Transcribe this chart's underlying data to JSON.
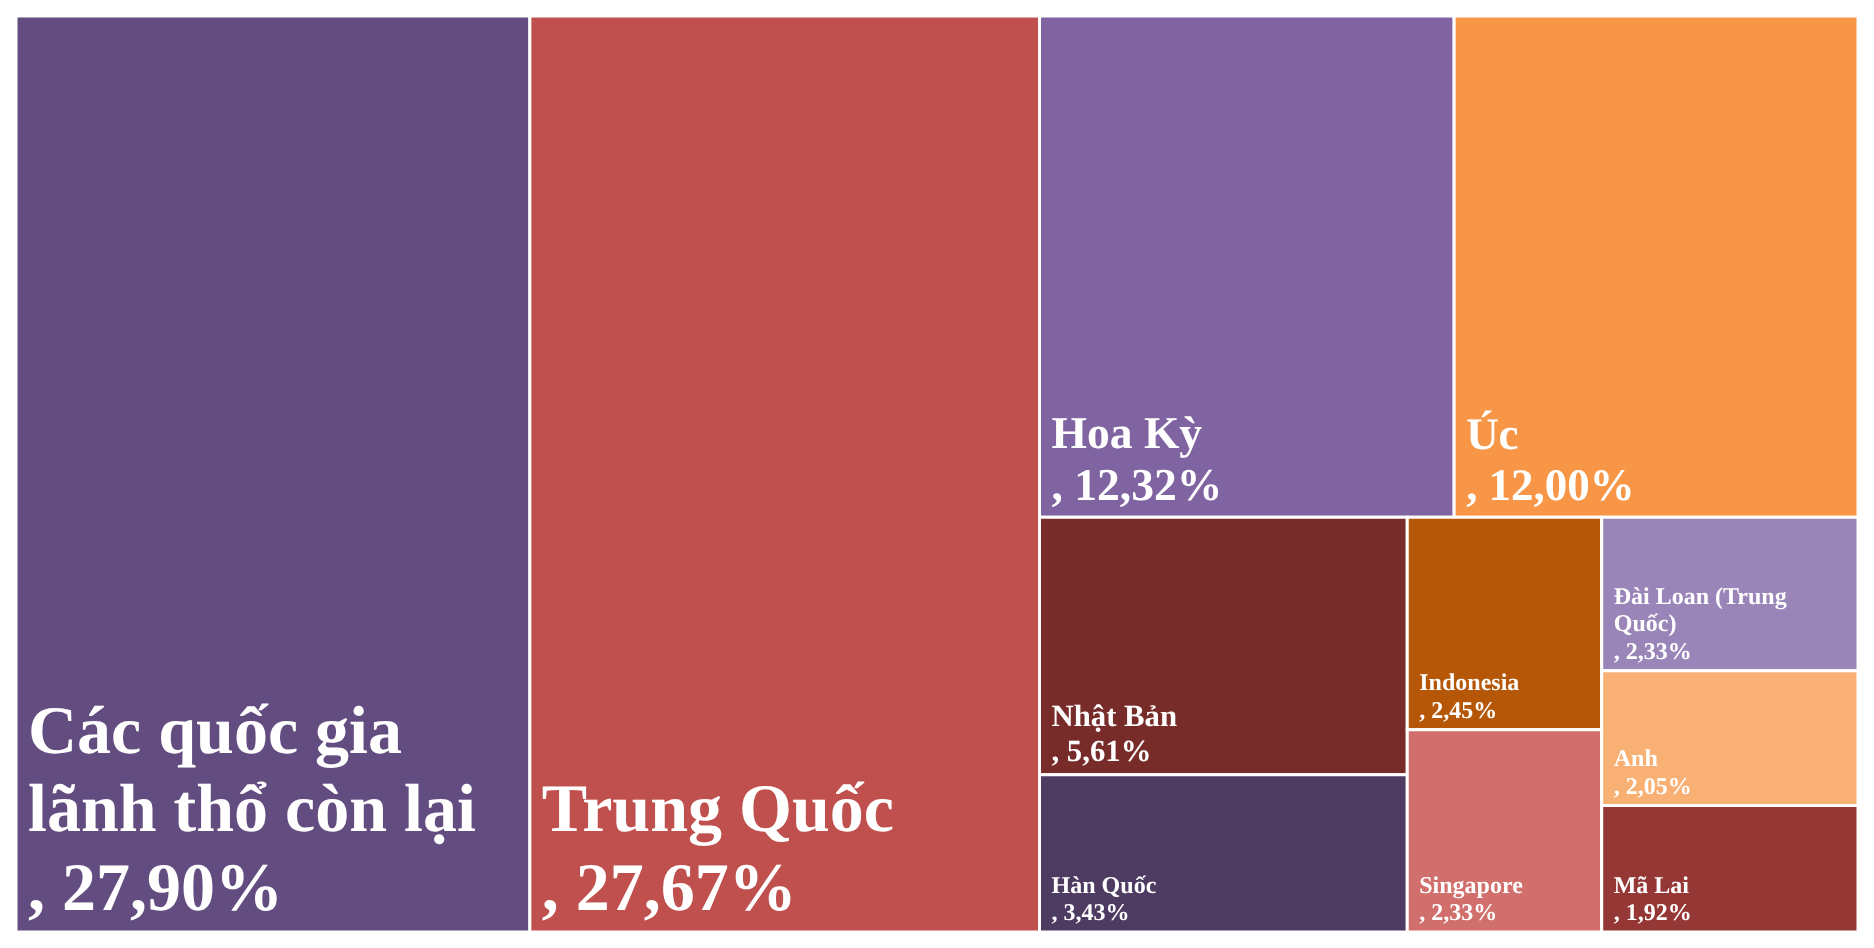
{
  "chart_data": {
    "type": "other",
    "categories": [
      "Các quốc gia lãnh thổ còn lại",
      "Trung Quốc",
      "Hoa Kỳ",
      "Úc",
      "Nhật Bản",
      "Hàn Quốc",
      "Indonesia",
      "Singapore",
      "Đài Loan (Trung Quốc)",
      "Anh",
      "Mã Lai"
    ],
    "values": [
      27.9,
      27.67,
      12.32,
      12.0,
      5.61,
      3.43,
      2.45,
      2.33,
      2.33,
      2.05,
      1.92
    ],
    "value_labels": [
      ", 27,90%",
      ", 27,67%",
      ", 12,32%",
      ", 12,00%",
      ", 5,61%",
      ", 3,43%",
      ", 2,45%",
      ", 2,33%",
      ", 2,33%",
      ", 2,05%",
      ", 1,92%"
    ],
    "colors": [
      "#634d80",
      "#c0504d",
      "#8064a2",
      "#f79646",
      "#772c2a",
      "#4d3b62",
      "#b65708",
      "#d06f6c",
      "#9a85b8",
      "#f9b074",
      "#953735"
    ],
    "data_labels": true
  }
}
